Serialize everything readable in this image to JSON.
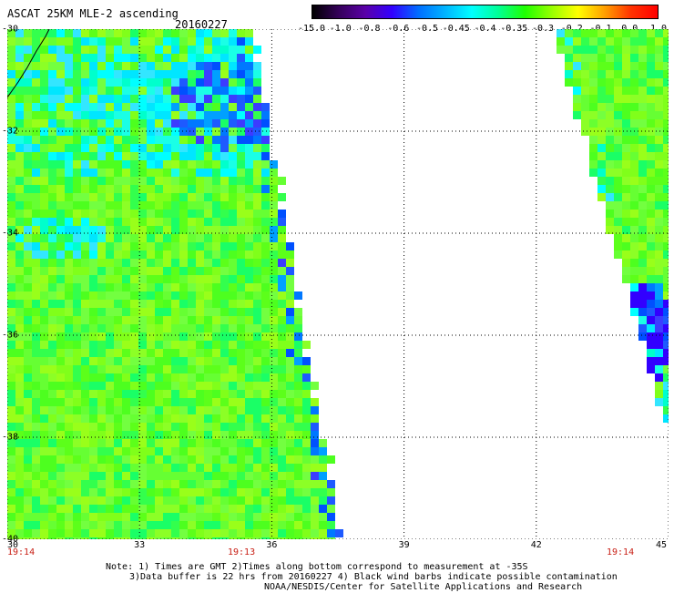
{
  "header": {
    "title": "ASCAT 25KM MLE-2 ascending",
    "date": "20160227"
  },
  "colorbar": {
    "ticks": [
      "-15.0",
      "-1.0",
      "-0.8",
      "-0.6",
      "-0.5",
      "-0.45",
      "-0.4",
      "-0.35",
      "-0.3",
      "-0.2",
      "-0.1",
      "0.0",
      "1.0"
    ],
    "colors": [
      "#000000",
      "#35005a",
      "#5a00a8",
      "#3200ff",
      "#006eff",
      "#00b4ff",
      "#00ffff",
      "#00ff96",
      "#1eff00",
      "#96ff00",
      "#ffff00",
      "#ffa000",
      "#ff3200",
      "#ff0000"
    ]
  },
  "map": {
    "lon_range": [
      30,
      45
    ],
    "lat_range": [
      -40,
      -30
    ],
    "lat_labels": [
      "-30",
      "-32",
      "-34",
      "-36",
      "-38",
      "-40"
    ],
    "lon_labels": [
      "30",
      "33",
      "36",
      "39",
      "42",
      "45"
    ],
    "swaths": [
      {
        "edge_lon_at_top": 35.5,
        "edge_lon_at_bottom": 37.5
      },
      {
        "edge_lon_at_top": 42.5,
        "edge_lon_at_bottom": 45
      }
    ],
    "time_labels": [
      "19:14",
      "19:13",
      "19:14"
    ]
  },
  "footer": {
    "note_line1": "Note: 1) Times are GMT 2)Times along bottom correspond to measurement at -35S",
    "note_line2": "3)Data buffer is 22 hrs from 20160227 4) Black wind barbs indicate possible contamination",
    "note_line3": "NOAA/NESDIS/Center for Satellite Applications and Research"
  }
}
